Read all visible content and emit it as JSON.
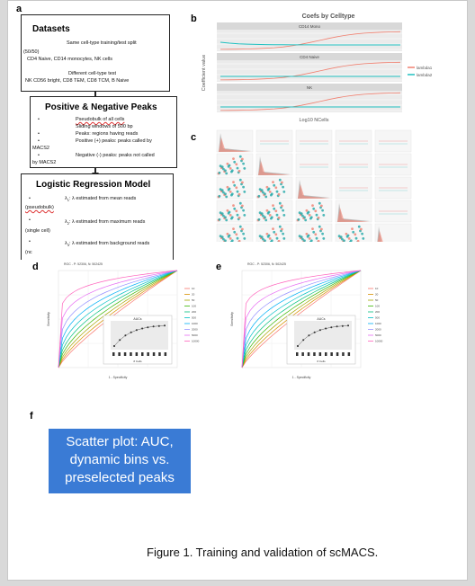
{
  "panels": {
    "a": "a",
    "b": "b",
    "c": "c",
    "d": "d",
    "e": "e",
    "f": "f"
  },
  "datasets": {
    "title": "Datasets",
    "line1": "Same cell-type training/test split",
    "line2": "(50/50)",
    "line3": "CD4 Naive, CD14 monocytes, NK cells",
    "line4": "Different cell-type test",
    "line5": "NK CD56 bright, CD8 TEM, CD8 TCM, B  Naive"
  },
  "peaks": {
    "title": "Positive & Negative Peaks",
    "b1": "Pseudobulk of all cells",
    "b2": "Sliding windows of 500 bp",
    "b3": "Peaks: regions having reads",
    "b4a": "Positive (+) peaks: peaks called by",
    "b4b": "MACS2",
    "b5a": "Negative (-) peaks: peaks not called",
    "b5b": "by MACS2"
  },
  "model": {
    "title": "Logistic Regression Model",
    "l1a": "λ",
    "l1b": ": λ estimated from mean reads",
    "l1c": "(pseudobulk)",
    "l2a": "λ",
    "l2b": ": λ estimated from maximum reads",
    "l2c": "(single cell)",
    "l3a": "λ",
    "l3b": ": λ estimated from background reads",
    "l3c": "(nc"
  },
  "bullet": "•",
  "chart_b": {
    "title": "Coefs by Celltype",
    "ylabel": "Coefficient value",
    "xlabel": "Log10 NCells",
    "facets": [
      "CD14 Mono",
      "CD4 Naive",
      "NK"
    ],
    "legend": [
      "lambda1",
      "lambda2"
    ],
    "colors": [
      "#f08070",
      "#20c0c0"
    ]
  },
  "chart_d": {
    "title": "ROC - P: 52306, N: 502425",
    "xlabel": "1 - Specificity",
    "ylabel": "Sensitivity",
    "inset_title": "AUCs",
    "inset_xlabel": "# Cells"
  },
  "chart_e": {
    "title": "ROC - P: 52306, N: 502425",
    "xlabel": "1 - Specificity",
    "ylabel": "Sensitivity",
    "inset_title": "AUCs",
    "inset_xlabel": "# Cells"
  },
  "roc_legend": [
    "10",
    "20",
    "50",
    "100",
    "200",
    "500",
    "1000",
    "2000",
    "5000",
    "10000"
  ],
  "roc_colors": [
    "#f8766d",
    "#d89000",
    "#a3a500",
    "#39b600",
    "#00bf7d",
    "#00bfc4",
    "#00b0f6",
    "#9590ff",
    "#e76bf3",
    "#ff62bc"
  ],
  "placeholder_f": "Scatter plot: AUC, dynamic bins vs. preselected peaks",
  "placeholder_f_lines": [
    "Scatter plot: AUC,",
    "dynamic bins vs.",
    "preselected peaks"
  ],
  "caption": "Figure 1. Training and validation of scMACS."
}
